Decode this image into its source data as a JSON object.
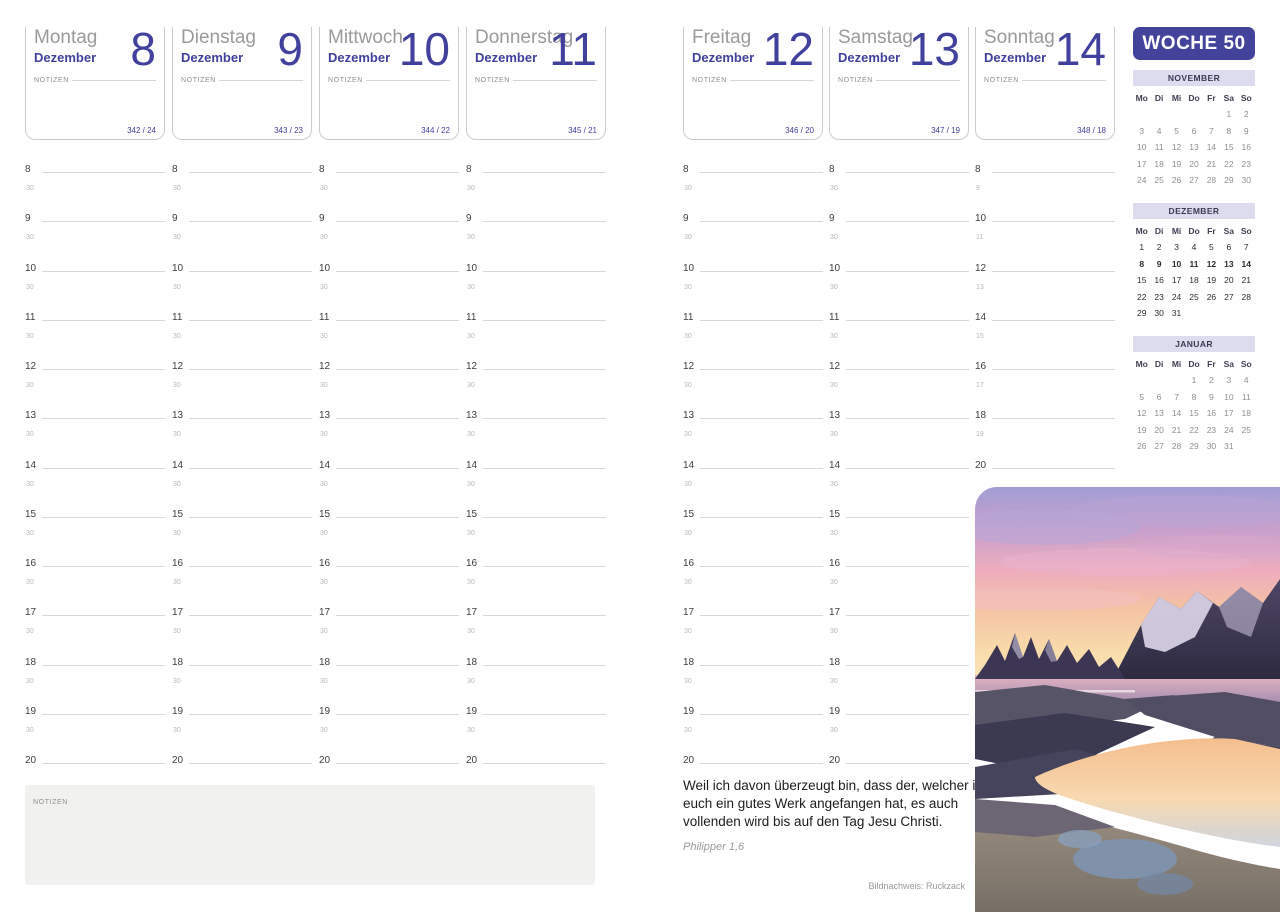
{
  "week": {
    "badge": "WOCHE 50"
  },
  "labels": {
    "notes": "NOTIZEN"
  },
  "days": [
    {
      "id": "montag",
      "name": "Montag",
      "month": "Dezember",
      "number": "8",
      "count": "342 / 24",
      "page": "left",
      "grid": "standard"
    },
    {
      "id": "dienstag",
      "name": "Dienstag",
      "month": "Dezember",
      "number": "9",
      "count": "343 / 23",
      "page": "left",
      "grid": "standard"
    },
    {
      "id": "mittwoch",
      "name": "Mittwoch",
      "month": "Dezember",
      "number": "10",
      "count": "344 / 22",
      "page": "left",
      "grid": "standard"
    },
    {
      "id": "donnerstag",
      "name": "Donnerstag",
      "month": "Dezember",
      "number": "11",
      "count": "345 / 21",
      "page": "left",
      "grid": "standard"
    },
    {
      "id": "freitag",
      "name": "Freitag",
      "month": "Dezember",
      "number": "12",
      "count": "346 / 20",
      "page": "right",
      "grid": "standard"
    },
    {
      "id": "samstag",
      "name": "Samstag",
      "month": "Dezember",
      "number": "13",
      "count": "347 / 19",
      "page": "right",
      "grid": "standard"
    },
    {
      "id": "sonntag",
      "name": "Sonntag",
      "month": "Dezember",
      "number": "14",
      "count": "348 / 18",
      "page": "right",
      "grid": "compressed"
    }
  ],
  "time_grids": {
    "standard": {
      "slots": [
        {
          "h": "8",
          "m": "30"
        },
        {
          "h": "9",
          "m": "30"
        },
        {
          "h": "10",
          "m": "30"
        },
        {
          "h": "11",
          "m": "30"
        },
        {
          "h": "12",
          "m": "30"
        },
        {
          "h": "13",
          "m": "30"
        },
        {
          "h": "14",
          "m": "30"
        },
        {
          "h": "15",
          "m": "30"
        },
        {
          "h": "16",
          "m": "30"
        },
        {
          "h": "17",
          "m": "30"
        },
        {
          "h": "18",
          "m": "30"
        },
        {
          "h": "19",
          "m": "30"
        }
      ],
      "end": "20"
    },
    "compressed": {
      "slots": [
        {
          "h": "8",
          "m": "9"
        },
        {
          "h": "10",
          "m": "11"
        },
        {
          "h": "12",
          "m": "13"
        },
        {
          "h": "14",
          "m": "15"
        },
        {
          "h": "16",
          "m": "17"
        },
        {
          "h": "18",
          "m": "19"
        }
      ],
      "end": "20"
    }
  },
  "mini_calendars": [
    {
      "title": "NOVEMBER",
      "weekdays": [
        "Mo",
        "Di",
        "Mi",
        "Do",
        "Fr",
        "Sa",
        "So"
      ],
      "current": false,
      "highlight_row": -1,
      "weeks": [
        [
          "",
          "",
          "",
          "",
          "",
          "1",
          "2"
        ],
        [
          "3",
          "4",
          "5",
          "6",
          "7",
          "8",
          "9"
        ],
        [
          "10",
          "11",
          "12",
          "13",
          "14",
          "15",
          "16"
        ],
        [
          "17",
          "18",
          "19",
          "20",
          "21",
          "22",
          "23"
        ],
        [
          "24",
          "25",
          "26",
          "27",
          "28",
          "29",
          "30"
        ]
      ]
    },
    {
      "title": "DEZEMBER",
      "weekdays": [
        "Mo",
        "Di",
        "Mi",
        "Do",
        "Fr",
        "Sa",
        "So"
      ],
      "current": true,
      "highlight_row": 1,
      "weeks": [
        [
          "1",
          "2",
          "3",
          "4",
          "5",
          "6",
          "7"
        ],
        [
          "8",
          "9",
          "10",
          "11",
          "12",
          "13",
          "14"
        ],
        [
          "15",
          "16",
          "17",
          "18",
          "19",
          "20",
          "21"
        ],
        [
          "22",
          "23",
          "24",
          "25",
          "26",
          "27",
          "28"
        ],
        [
          "29",
          "30",
          "31",
          "",
          "",
          "",
          ""
        ]
      ]
    },
    {
      "title": "JANUAR",
      "weekdays": [
        "Mo",
        "Di",
        "Mi",
        "Do",
        "Fr",
        "Sa",
        "So"
      ],
      "current": false,
      "highlight_row": -1,
      "weeks": [
        [
          "",
          "",
          "",
          "1",
          "2",
          "3",
          "4"
        ],
        [
          "5",
          "6",
          "7",
          "8",
          "9",
          "10",
          "11"
        ],
        [
          "12",
          "13",
          "14",
          "15",
          "16",
          "17",
          "18"
        ],
        [
          "19",
          "20",
          "21",
          "22",
          "23",
          "24",
          "25"
        ],
        [
          "26",
          "27",
          "28",
          "29",
          "30",
          "31",
          ""
        ]
      ]
    }
  ],
  "bottom_notes_label": "NOTIZEN",
  "quote": {
    "text": "Weil ich davon überzeugt bin, dass der, welcher in euch ein gutes Werk angefangen hat, es auch vollenden wird bis auf den Tag Jesu Christi.",
    "source": "Philipper 1,6"
  },
  "photo": {
    "credit": "Bildnachweis: Ruckzack",
    "description": "sunset-coast-mountains-photo"
  },
  "colors": {
    "accent": "#41409d",
    "badge_bg": "#44439c",
    "calendar_header_bg": "#dcdcee",
    "notes_box_bg": "#f1f1ef"
  }
}
